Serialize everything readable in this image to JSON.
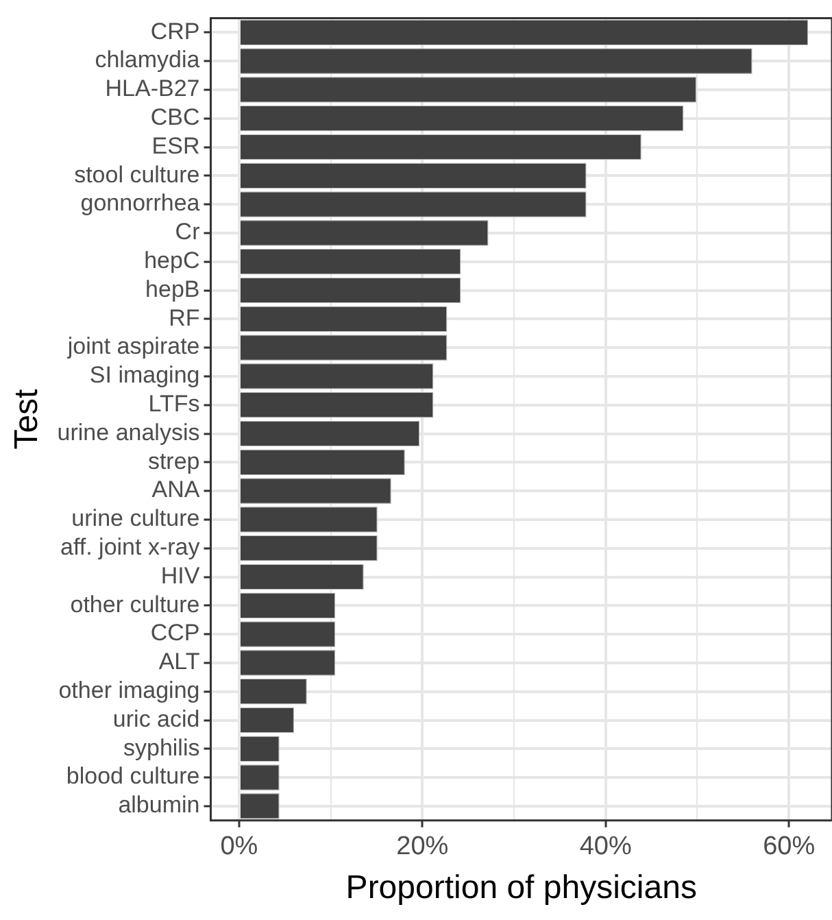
{
  "chart_data": {
    "type": "bar",
    "orientation": "horizontal",
    "xlabel": "Proportion of physicians",
    "ylabel": "Test",
    "categories": [
      "CRP",
      "chlamydia",
      "HLA-B27",
      "CBC",
      "ESR",
      "stool culture",
      "gonnorrhea",
      "Cr",
      "hepC",
      "hepB",
      "RF",
      "joint aspirate",
      "SI imaging",
      "LTFs",
      "urine analysis",
      "strep",
      "ANA",
      "urine culture",
      "aff. joint x-ray",
      "HIV",
      "other culture",
      "CCP",
      "ALT",
      "other imaging",
      "uric acid",
      "syphilis",
      "blood culture",
      "albumin"
    ],
    "values": [
      62.1,
      56.0,
      49.9,
      48.5,
      43.9,
      37.9,
      37.9,
      27.2,
      24.2,
      24.2,
      22.7,
      22.7,
      21.2,
      21.2,
      19.7,
      18.1,
      16.6,
      15.1,
      15.1,
      13.6,
      10.5,
      10.5,
      10.5,
      7.4,
      6.0,
      4.4,
      4.4,
      4.4
    ],
    "color": "#404040",
    "xlim": [
      -3.1,
      64.7
    ],
    "xticks": [
      {
        "value": 0,
        "label": "0%"
      },
      {
        "value": 10,
        "label": null
      },
      {
        "value": 20,
        "label": "20%"
      },
      {
        "value": 30,
        "label": null
      },
      {
        "value": 40,
        "label": "40%"
      },
      {
        "value": 50,
        "label": null
      },
      {
        "value": 60,
        "label": "60%"
      }
    ],
    "grid": true,
    "legend": false
  }
}
